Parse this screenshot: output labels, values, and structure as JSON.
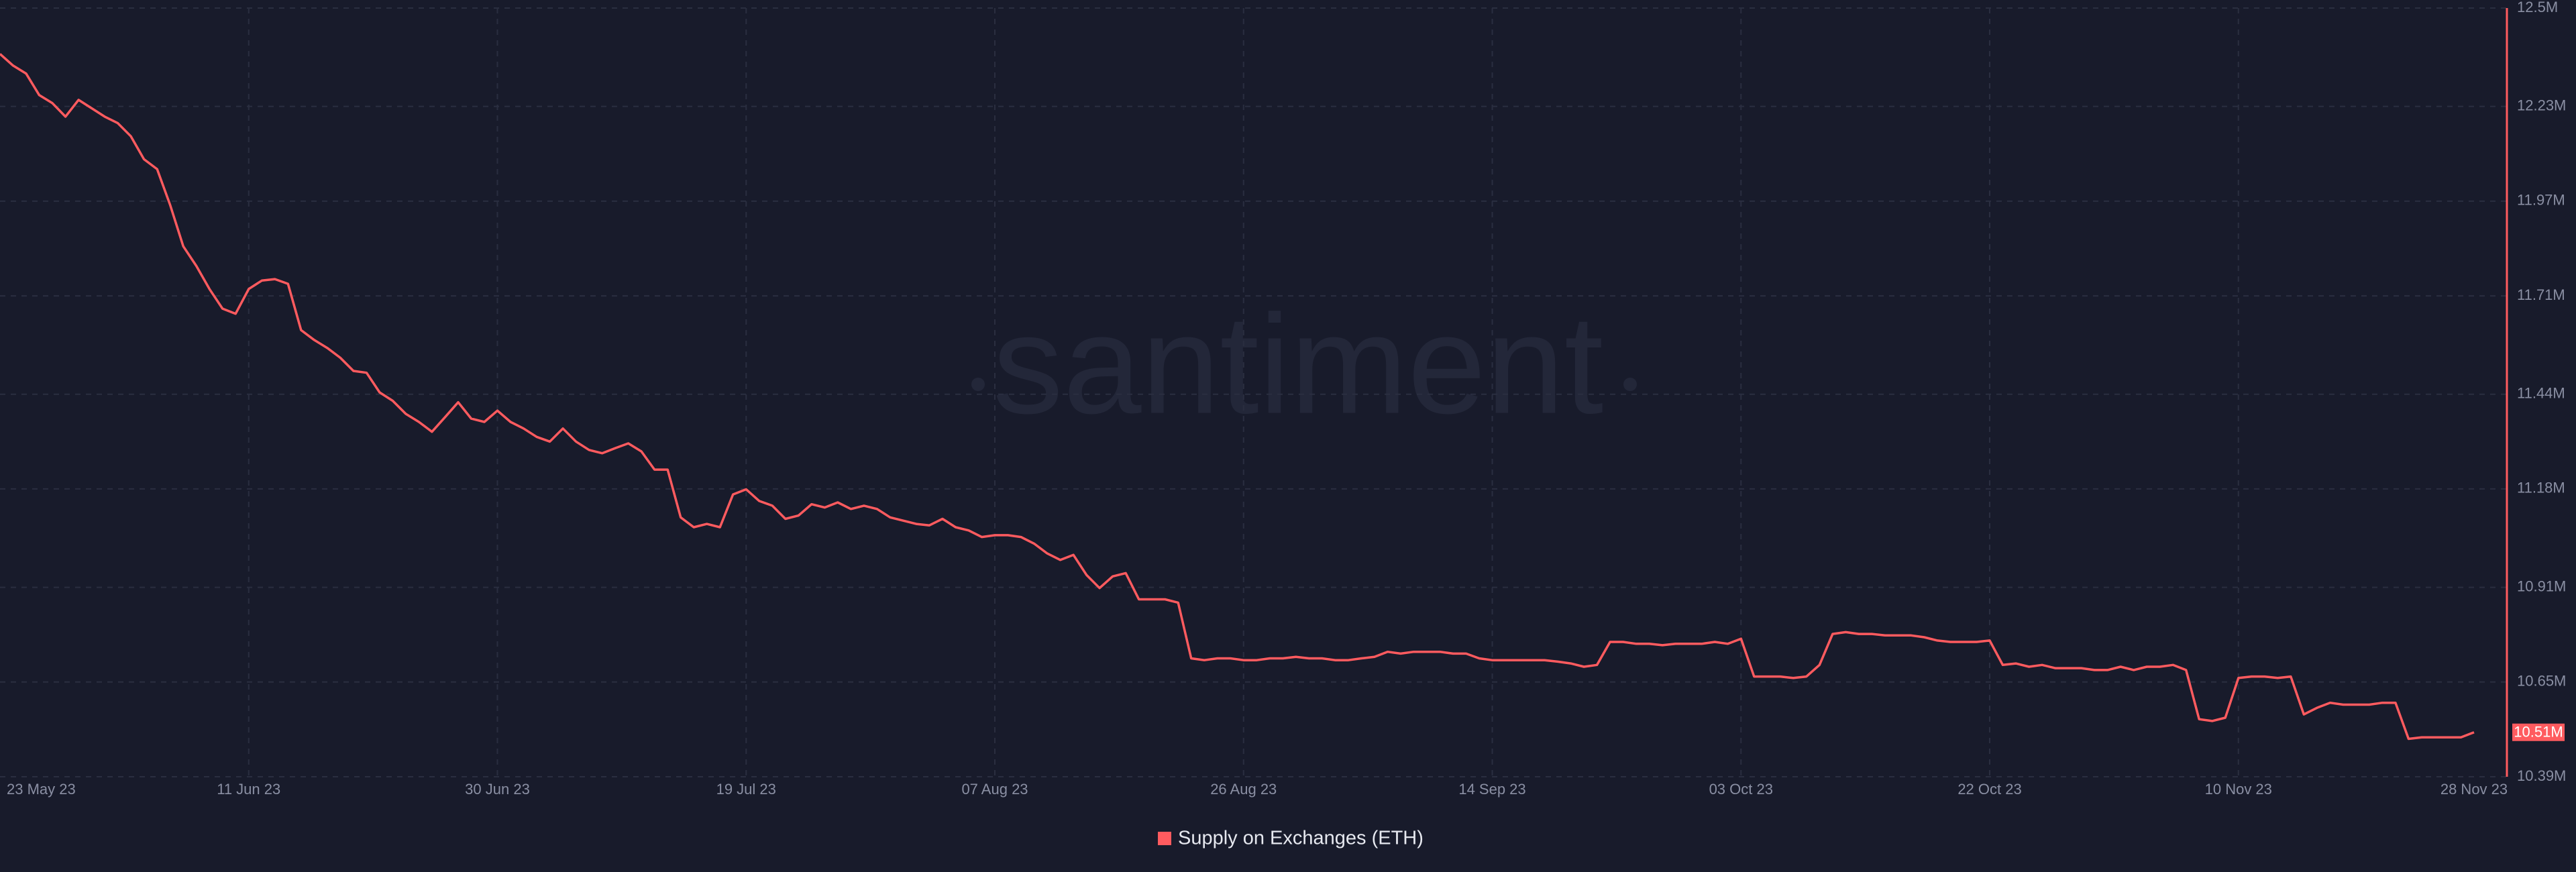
{
  "chart_data": {
    "type": "line",
    "watermark": "santiment",
    "categories": [
      "23 May 23",
      null,
      null,
      null,
      null,
      null,
      null,
      null,
      null,
      null,
      null,
      null,
      null,
      null,
      null,
      null,
      null,
      null,
      null,
      "11 Jun 23",
      null,
      null,
      null,
      null,
      null,
      null,
      null,
      null,
      null,
      null,
      null,
      null,
      null,
      null,
      null,
      null,
      null,
      null,
      "30 Jun 23",
      null,
      null,
      null,
      null,
      null,
      null,
      null,
      null,
      null,
      null,
      null,
      null,
      null,
      null,
      null,
      null,
      null,
      null,
      "19 Jul 23",
      null,
      null,
      null,
      null,
      null,
      null,
      null,
      null,
      null,
      null,
      null,
      null,
      null,
      null,
      null,
      null,
      null,
      null,
      "07 Aug 23",
      null,
      null,
      null,
      null,
      null,
      null,
      null,
      null,
      null,
      null,
      null,
      null,
      null,
      null,
      null,
      null,
      null,
      null,
      "26 Aug 23",
      null,
      null,
      null,
      null,
      null,
      null,
      null,
      null,
      null,
      null,
      null,
      null,
      null,
      null,
      null,
      null,
      null,
      null,
      "14 Sep 23",
      null,
      null,
      null,
      null,
      null,
      null,
      null,
      null,
      null,
      null,
      null,
      null,
      null,
      null,
      null,
      null,
      null,
      null,
      "03 Oct 23",
      null,
      null,
      null,
      null,
      null,
      null,
      null,
      null,
      null,
      null,
      null,
      null,
      null,
      null,
      null,
      null,
      null,
      null,
      "22 Oct 23",
      null,
      null,
      null,
      null,
      null,
      null,
      null,
      null,
      null,
      null,
      null,
      null,
      null,
      null,
      null,
      null,
      null,
      null,
      "10 Nov 23",
      null,
      null,
      null,
      null,
      null,
      null,
      null,
      null,
      null,
      null,
      null,
      null,
      null,
      null,
      null,
      null,
      null,
      "28 Nov 23"
    ],
    "series": [
      {
        "name": "Supply on Exchanges (ETH)",
        "color": "#ff5b5f",
        "values": [
          12.374,
          12.342,
          12.32,
          12.261,
          12.239,
          12.202,
          12.248,
          12.225,
          12.202,
          12.184,
          12.148,
          12.085,
          12.058,
          11.959,
          11.846,
          11.792,
          11.729,
          11.675,
          11.661,
          11.729,
          11.752,
          11.756,
          11.743,
          11.616,
          11.589,
          11.567,
          11.54,
          11.504,
          11.499,
          11.445,
          11.422,
          11.386,
          11.364,
          11.337,
          11.377,
          11.418,
          11.373,
          11.364,
          11.395,
          11.364,
          11.346,
          11.323,
          11.31,
          11.346,
          11.31,
          11.287,
          11.278,
          11.292,
          11.305,
          11.283,
          11.233,
          11.233,
          11.102,
          11.075,
          11.084,
          11.075,
          11.165,
          11.179,
          11.147,
          11.134,
          11.098,
          11.107,
          11.138,
          11.129,
          11.143,
          11.125,
          11.134,
          11.125,
          11.102,
          11.093,
          11.084,
          11.08,
          11.098,
          11.075,
          11.066,
          11.048,
          11.053,
          11.053,
          11.048,
          11.03,
          11.003,
          10.985,
          10.999,
          10.944,
          10.908,
          10.94,
          10.949,
          10.877,
          10.877,
          10.877,
          10.868,
          10.715,
          10.71,
          10.715,
          10.715,
          10.71,
          10.71,
          10.715,
          10.715,
          10.719,
          10.715,
          10.715,
          10.71,
          10.71,
          10.715,
          10.719,
          10.733,
          10.728,
          10.733,
          10.733,
          10.733,
          10.728,
          10.728,
          10.715,
          10.71,
          10.71,
          10.71,
          10.71,
          10.71,
          10.706,
          10.701,
          10.692,
          10.697,
          10.76,
          10.76,
          10.755,
          10.755,
          10.751,
          10.755,
          10.755,
          10.755,
          10.76,
          10.755,
          10.769,
          10.665,
          10.665,
          10.665,
          10.661,
          10.665,
          10.697,
          10.782,
          10.787,
          10.782,
          10.782,
          10.778,
          10.778,
          10.778,
          10.773,
          10.764,
          10.76,
          10.76,
          10.76,
          10.764,
          10.697,
          10.701,
          10.692,
          10.697,
          10.688,
          10.688,
          10.688,
          10.683,
          10.683,
          10.692,
          10.683,
          10.692,
          10.692,
          10.697,
          10.683,
          10.548,
          10.543,
          10.552,
          10.661,
          10.665,
          10.665,
          10.661,
          10.665,
          10.561,
          10.579,
          10.593,
          10.588,
          10.588,
          10.588,
          10.593,
          10.593,
          10.494,
          10.498,
          10.498,
          10.498,
          10.498,
          10.512
        ]
      }
    ],
    "current_value_label": "10.51M",
    "ylim": [
      10.39,
      12.5
    ],
    "yticks": [
      {
        "value": 12.5,
        "label": "12.5M"
      },
      {
        "value": 12.23,
        "label": "12.23M"
      },
      {
        "value": 11.97,
        "label": "11.97M"
      },
      {
        "value": 11.71,
        "label": "11.71M"
      },
      {
        "value": 11.44,
        "label": "11.44M"
      },
      {
        "value": 11.18,
        "label": "11.18M"
      },
      {
        "value": 10.91,
        "label": "10.91M"
      },
      {
        "value": 10.65,
        "label": "10.65M"
      },
      {
        "value": 10.39,
        "label": "10.39M"
      }
    ],
    "grid": true,
    "legend": "bottom"
  }
}
